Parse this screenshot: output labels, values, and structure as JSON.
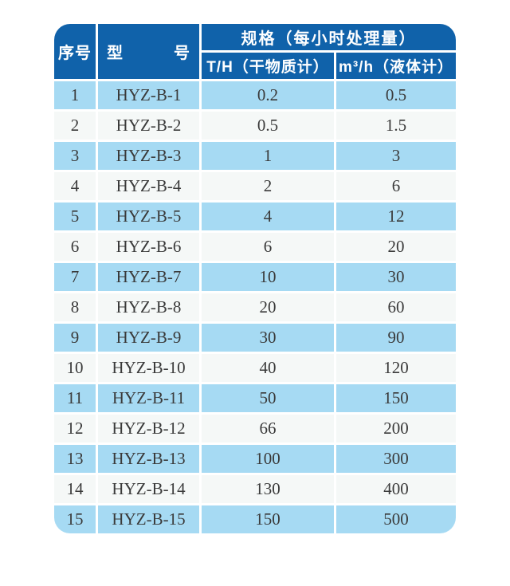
{
  "page": {
    "background": "#ffffff"
  },
  "colors": {
    "header_bg": "#1062aa",
    "header_text": "#ffffff",
    "row_odd_bg": "#a6daf3",
    "row_even_bg": "#f5f8f7",
    "body_text": "#3a3a3a"
  },
  "table": {
    "header": {
      "col_serial": "序号",
      "col_model": "型　　　号",
      "spec_group": "规格（每小时处理量）",
      "col_dry": "T/H（干物质计）",
      "col_liquid": "m³/h（液体计）"
    },
    "rows": [
      {
        "no": "1",
        "model": "HYZ-B-1",
        "dry": "0.2",
        "liquid": "0.5"
      },
      {
        "no": "2",
        "model": "HYZ-B-2",
        "dry": "0.5",
        "liquid": "1.5"
      },
      {
        "no": "3",
        "model": "HYZ-B-3",
        "dry": "1",
        "liquid": "3"
      },
      {
        "no": "4",
        "model": "HYZ-B-4",
        "dry": "2",
        "liquid": "6"
      },
      {
        "no": "5",
        "model": "HYZ-B-5",
        "dry": "4",
        "liquid": "12"
      },
      {
        "no": "6",
        "model": "HYZ-B-6",
        "dry": "6",
        "liquid": "20"
      },
      {
        "no": "7",
        "model": "HYZ-B-7",
        "dry": "10",
        "liquid": "30"
      },
      {
        "no": "8",
        "model": "HYZ-B-8",
        "dry": "20",
        "liquid": "60"
      },
      {
        "no": "9",
        "model": "HYZ-B-9",
        "dry": "30",
        "liquid": "90"
      },
      {
        "no": "10",
        "model": "HYZ-B-10",
        "dry": "40",
        "liquid": "120"
      },
      {
        "no": "11",
        "model": "HYZ-B-11",
        "dry": "50",
        "liquid": "150"
      },
      {
        "no": "12",
        "model": "HYZ-B-12",
        "dry": "66",
        "liquid": "200"
      },
      {
        "no": "13",
        "model": "HYZ-B-13",
        "dry": "100",
        "liquid": "300"
      },
      {
        "no": "14",
        "model": "HYZ-B-14",
        "dry": "130",
        "liquid": "400"
      },
      {
        "no": "15",
        "model": "HYZ-B-15",
        "dry": "150",
        "liquid": "500"
      }
    ]
  }
}
